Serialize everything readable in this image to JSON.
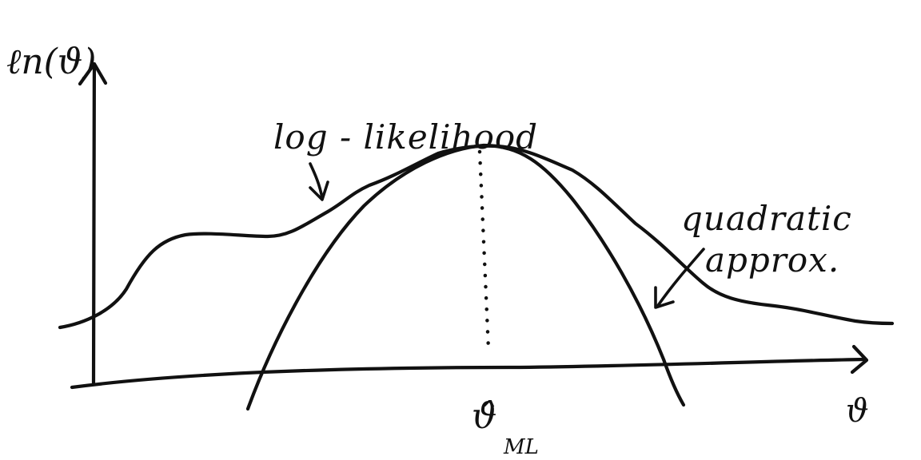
{
  "labels": {
    "y_axis": "ℓn(ϑ)",
    "x_axis": "ϑ",
    "curve_loglik": "log - likelihood",
    "curve_quadratic_line1": "quadratic",
    "curve_quadratic_line2": "approx.",
    "mle_symbol": "ϑ̂",
    "mle_subscript": "ML"
  }
}
